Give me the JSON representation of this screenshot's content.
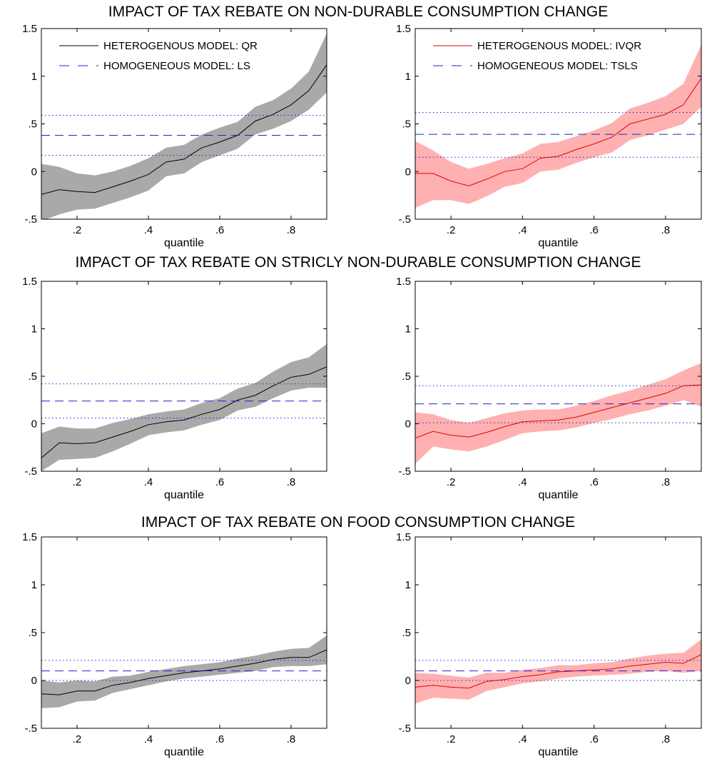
{
  "row_titles": [
    "IMPACT OF TAX REBATE ON NON-DURABLE CONSUMPTION CHANGE",
    "IMPACT OF TAX REBATE ON STRICLY NON-DURABLE CONSUMPTION CHANGE",
    "IMPACT OF TAX REBATE ON FOOD CONSUMPTION CHANGE"
  ],
  "colors": {
    "qr_line": "#000000",
    "qr_band": "#a9a9a9",
    "ivqr_line": "#e00000",
    "ivqr_band": "#ffb0b0",
    "homogeneous": "#2222cc"
  },
  "chart_data": [
    {
      "type": "line",
      "row": 0,
      "col": 0,
      "xlabel": "quantile",
      "xlim": [
        0.1,
        0.9
      ],
      "ylim": [
        -0.5,
        1.5
      ],
      "xticks": [
        0.2,
        0.4,
        0.6,
        0.8
      ],
      "yticks": [
        -0.5,
        0,
        0.5,
        1,
        1.5
      ],
      "legend": {
        "placement": "top",
        "entries": [
          "HETEROGENOUS MODEL: QR",
          "HOMOGENEOUS MODEL: LS"
        ]
      },
      "x": [
        0.1,
        0.15,
        0.2,
        0.25,
        0.3,
        0.35,
        0.4,
        0.45,
        0.5,
        0.55,
        0.6,
        0.65,
        0.7,
        0.75,
        0.8,
        0.85,
        0.9
      ],
      "series": [
        {
          "name": "HETEROGENOUS MODEL: QR",
          "style": "qr",
          "values": [
            -0.24,
            -0.19,
            -0.21,
            -0.22,
            -0.16,
            -0.1,
            -0.03,
            0.1,
            0.13,
            0.25,
            0.31,
            0.38,
            0.53,
            0.6,
            0.7,
            0.85,
            1.12
          ],
          "lower": [
            -0.52,
            -0.45,
            -0.4,
            -0.39,
            -0.33,
            -0.27,
            -0.2,
            -0.05,
            -0.02,
            0.1,
            0.17,
            0.24,
            0.39,
            0.45,
            0.53,
            0.65,
            0.83
          ],
          "upper": [
            0.08,
            0.05,
            -0.02,
            -0.04,
            0.0,
            0.06,
            0.14,
            0.25,
            0.28,
            0.39,
            0.46,
            0.52,
            0.68,
            0.75,
            0.87,
            1.05,
            1.45
          ]
        }
      ],
      "homogeneous": {
        "name": "HOMOGENEOUS MODEL: LS",
        "estimate": 0.38,
        "lower": 0.17,
        "upper": 0.59
      }
    },
    {
      "type": "line",
      "row": 0,
      "col": 1,
      "xlabel": "quantile",
      "xlim": [
        0.1,
        0.9
      ],
      "ylim": [
        -0.5,
        1.5
      ],
      "xticks": [
        0.2,
        0.4,
        0.6,
        0.8
      ],
      "yticks": [
        -0.5,
        0,
        0.5,
        1,
        1.5
      ],
      "legend": {
        "placement": "top",
        "entries": [
          "HETEROGENOUS MODEL: IVQR",
          "HOMOGENEOUS MODEL: TSLS"
        ]
      },
      "x": [
        0.1,
        0.15,
        0.2,
        0.25,
        0.3,
        0.35,
        0.4,
        0.45,
        0.5,
        0.55,
        0.6,
        0.65,
        0.7,
        0.75,
        0.8,
        0.85,
        0.9
      ],
      "series": [
        {
          "name": "HETEROGENOUS MODEL: IVQR",
          "style": "ivqr",
          "values": [
            -0.02,
            -0.02,
            -0.1,
            -0.15,
            -0.08,
            0.0,
            0.03,
            0.14,
            0.16,
            0.23,
            0.29,
            0.36,
            0.5,
            0.55,
            0.6,
            0.7,
            0.98
          ],
          "lower": [
            -0.38,
            -0.3,
            -0.3,
            -0.34,
            -0.26,
            -0.16,
            -0.12,
            0.0,
            0.02,
            0.09,
            0.15,
            0.2,
            0.33,
            0.38,
            0.44,
            0.5,
            0.68
          ],
          "upper": [
            0.32,
            0.22,
            0.1,
            0.03,
            0.08,
            0.14,
            0.19,
            0.29,
            0.31,
            0.37,
            0.43,
            0.51,
            0.66,
            0.72,
            0.79,
            0.92,
            1.33
          ]
        }
      ],
      "homogeneous": {
        "name": "HOMOGENEOUS MODEL: TSLS",
        "estimate": 0.39,
        "lower": 0.15,
        "upper": 0.62
      }
    },
    {
      "type": "line",
      "row": 1,
      "col": 0,
      "xlabel": "quantile",
      "xlim": [
        0.1,
        0.9
      ],
      "ylim": [
        -0.5,
        1.5
      ],
      "xticks": [
        0.2,
        0.4,
        0.6,
        0.8
      ],
      "yticks": [
        -0.5,
        0,
        0.5,
        1,
        1.5
      ],
      "x": [
        0.1,
        0.15,
        0.2,
        0.25,
        0.3,
        0.35,
        0.4,
        0.45,
        0.5,
        0.55,
        0.6,
        0.65,
        0.7,
        0.75,
        0.8,
        0.85,
        0.9
      ],
      "series": [
        {
          "style": "qr",
          "values": [
            -0.36,
            -0.2,
            -0.21,
            -0.2,
            -0.14,
            -0.08,
            -0.01,
            0.02,
            0.04,
            0.1,
            0.15,
            0.25,
            0.3,
            0.4,
            0.49,
            0.52,
            0.6
          ],
          "lower": [
            -0.5,
            -0.38,
            -0.37,
            -0.36,
            -0.29,
            -0.21,
            -0.12,
            -0.09,
            -0.07,
            -0.01,
            0.04,
            0.14,
            0.18,
            0.27,
            0.35,
            0.38,
            0.38
          ],
          "upper": [
            -0.1,
            -0.03,
            -0.05,
            -0.05,
            0.01,
            0.05,
            0.1,
            0.13,
            0.15,
            0.22,
            0.27,
            0.37,
            0.43,
            0.55,
            0.65,
            0.7,
            0.84
          ]
        }
      ],
      "homogeneous": {
        "estimate": 0.24,
        "lower": 0.06,
        "upper": 0.42
      }
    },
    {
      "type": "line",
      "row": 1,
      "col": 1,
      "xlabel": "quantile",
      "xlim": [
        0.1,
        0.9
      ],
      "ylim": [
        -0.5,
        1.5
      ],
      "xticks": [
        0.2,
        0.4,
        0.6,
        0.8
      ],
      "yticks": [
        -0.5,
        0,
        0.5,
        1,
        1.5
      ],
      "x": [
        0.1,
        0.15,
        0.2,
        0.25,
        0.3,
        0.35,
        0.4,
        0.45,
        0.5,
        0.55,
        0.6,
        0.65,
        0.7,
        0.75,
        0.8,
        0.85,
        0.9
      ],
      "series": [
        {
          "style": "ivqr",
          "values": [
            -0.15,
            -0.08,
            -0.12,
            -0.14,
            -0.09,
            -0.03,
            0.02,
            0.03,
            0.04,
            0.07,
            0.12,
            0.17,
            0.22,
            0.27,
            0.32,
            0.4,
            0.41
          ],
          "lower": [
            -0.42,
            -0.24,
            -0.27,
            -0.29,
            -0.24,
            -0.17,
            -0.1,
            -0.08,
            -0.07,
            -0.04,
            0.01,
            0.05,
            0.1,
            0.14,
            0.19,
            0.25,
            0.18
          ],
          "upper": [
            0.12,
            0.1,
            0.04,
            0.01,
            0.06,
            0.11,
            0.14,
            0.15,
            0.15,
            0.19,
            0.24,
            0.3,
            0.35,
            0.41,
            0.47,
            0.56,
            0.64
          ]
        }
      ],
      "homogeneous": {
        "estimate": 0.21,
        "lower": 0.01,
        "upper": 0.4
      }
    },
    {
      "type": "line",
      "row": 2,
      "col": 0,
      "xlabel": "quantile",
      "xlim": [
        0.1,
        0.9
      ],
      "ylim": [
        -0.5,
        1.5
      ],
      "xticks": [
        0.2,
        0.4,
        0.6,
        0.8
      ],
      "yticks": [
        -0.5,
        0,
        0.5,
        1,
        1.5
      ],
      "x": [
        0.1,
        0.15,
        0.2,
        0.25,
        0.3,
        0.35,
        0.4,
        0.45,
        0.5,
        0.55,
        0.6,
        0.65,
        0.7,
        0.75,
        0.8,
        0.85,
        0.9
      ],
      "series": [
        {
          "style": "qr",
          "values": [
            -0.14,
            -0.15,
            -0.11,
            -0.11,
            -0.05,
            -0.02,
            0.02,
            0.05,
            0.08,
            0.1,
            0.12,
            0.15,
            0.18,
            0.22,
            0.24,
            0.24,
            0.32
          ],
          "lower": [
            -0.29,
            -0.28,
            -0.22,
            -0.21,
            -0.13,
            -0.09,
            -0.05,
            -0.01,
            0.02,
            0.04,
            0.06,
            0.08,
            0.1,
            0.14,
            0.15,
            0.15,
            0.17
          ],
          "upper": [
            0.0,
            -0.02,
            0.0,
            -0.01,
            0.04,
            0.05,
            0.09,
            0.12,
            0.15,
            0.17,
            0.19,
            0.23,
            0.26,
            0.3,
            0.33,
            0.34,
            0.47
          ]
        }
      ],
      "homogeneous": {
        "estimate": 0.1,
        "lower": 0.0,
        "upper": 0.21
      }
    },
    {
      "type": "line",
      "row": 2,
      "col": 1,
      "xlabel": "quantile",
      "xlim": [
        0.1,
        0.9
      ],
      "ylim": [
        -0.5,
        1.5
      ],
      "xticks": [
        0.2,
        0.4,
        0.6,
        0.8
      ],
      "yticks": [
        -0.5,
        0,
        0.5,
        1,
        1.5
      ],
      "x": [
        0.1,
        0.15,
        0.2,
        0.25,
        0.3,
        0.35,
        0.4,
        0.45,
        0.5,
        0.55,
        0.6,
        0.65,
        0.7,
        0.75,
        0.8,
        0.85,
        0.9
      ],
      "series": [
        {
          "style": "ivqr",
          "values": [
            -0.07,
            -0.05,
            -0.07,
            -0.08,
            -0.01,
            0.01,
            0.04,
            0.06,
            0.09,
            0.1,
            0.11,
            0.12,
            0.15,
            0.17,
            0.19,
            0.18,
            0.27
          ],
          "lower": [
            -0.24,
            -0.18,
            -0.19,
            -0.2,
            -0.11,
            -0.07,
            -0.03,
            -0.01,
            0.02,
            0.04,
            0.05,
            0.06,
            0.07,
            0.09,
            0.1,
            0.08,
            0.1
          ],
          "upper": [
            0.08,
            0.07,
            0.05,
            0.03,
            0.08,
            0.08,
            0.11,
            0.13,
            0.16,
            0.16,
            0.18,
            0.19,
            0.23,
            0.26,
            0.28,
            0.29,
            0.43
          ]
        }
      ],
      "homogeneous": {
        "estimate": 0.1,
        "lower": 0.0,
        "upper": 0.21
      }
    }
  ]
}
